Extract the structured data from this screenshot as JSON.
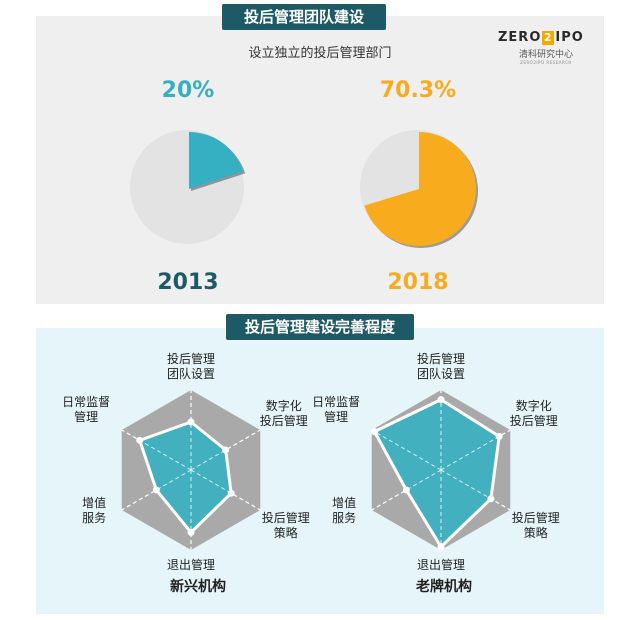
{
  "section1": {
    "title": "投后管理团队建设",
    "subtitle": "设立独立的投后管理部门"
  },
  "section2": {
    "title": "投后管理建设完善程度"
  },
  "logo": {
    "left": "ZERO",
    "box": "2",
    "right": "IPO",
    "sub": "清科研究中心",
    "tiny": "ZERO2IPO RESEARCH"
  },
  "colors": {
    "teal": "#34b0c2",
    "orange": "#f9ab1e",
    "grey_pie": "#e3e3e3",
    "dark_teal": "#1e5a66",
    "hex_bg": "#a9a9a9"
  },
  "chart_data": [
    {
      "type": "pie",
      "year": "2013",
      "value_label": "20%",
      "value": 20,
      "rest": 80,
      "color": "#34b0c2",
      "year_color": "#1e5a66"
    },
    {
      "type": "pie",
      "year": "2018",
      "value_label": "70.3%",
      "value": 70.3,
      "rest": 29.7,
      "color": "#f9ab1e",
      "year_color": "#f9ab1e"
    },
    {
      "type": "radar",
      "name": "新兴机构",
      "axes": [
        "投后管理团队设置",
        "数字化投后管理",
        "投后管理策略",
        "退出管理",
        "增值服务",
        "日常监督管理"
      ],
      "axis_labels": [
        [
          "投后管理",
          "团队设置"
        ],
        [
          "数字化",
          "投后管理"
        ],
        [
          "投后管理",
          "策略"
        ],
        [
          "退出管理"
        ],
        [
          "增值",
          "服务"
        ],
        [
          "日常监督",
          "管理"
        ]
      ],
      "values": [
        0.6,
        0.5,
        0.58,
        0.78,
        0.5,
        0.74
      ],
      "max": 1
    },
    {
      "type": "radar",
      "name": "老牌机构",
      "axes": [
        "投后管理团队设置",
        "数字化投后管理",
        "投后管理策略",
        "退出管理",
        "增值服务",
        "日常监督管理"
      ],
      "axis_labels": [
        [
          "投后管理",
          "团队设置"
        ],
        [
          "数字化",
          "投后管理"
        ],
        [
          "投后管理",
          "策略"
        ],
        [
          "退出管理"
        ],
        [
          "增值",
          "服务"
        ],
        [
          "日常监督",
          "管理"
        ]
      ],
      "values": [
        0.88,
        0.84,
        0.72,
        0.96,
        0.5,
        0.96
      ],
      "max": 1
    }
  ]
}
